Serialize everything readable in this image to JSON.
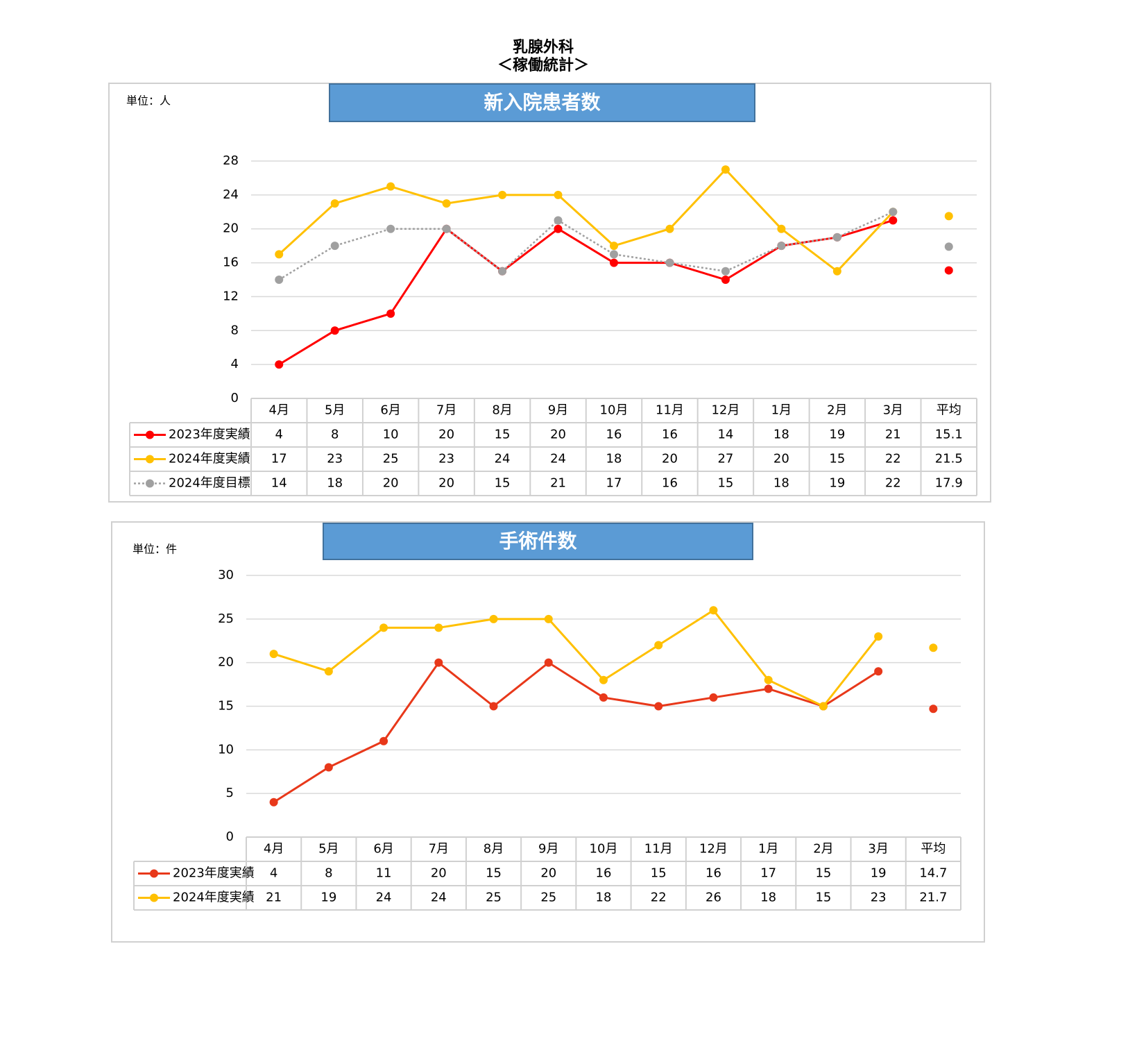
{
  "page_title": [
    "乳腺外科",
    "＜稼働統計＞"
  ],
  "chart_data": [
    {
      "type": "line",
      "title": "新入院患者数",
      "unit_label": "単位：人",
      "categories": [
        "4月",
        "5月",
        "6月",
        "7月",
        "8月",
        "9月",
        "10月",
        "11月",
        "12月",
        "1月",
        "2月",
        "3月"
      ],
      "average_label": "平均",
      "ylim": [
        0,
        28
      ],
      "yticks": [
        0,
        4,
        8,
        12,
        16,
        20,
        24,
        28
      ],
      "grid": true,
      "series": [
        {
          "name": "2023年度実績",
          "color": "#ff0000",
          "dash": "solid",
          "values": [
            4,
            8,
            10,
            20,
            15,
            20,
            16,
            16,
            14,
            18,
            19,
            21
          ],
          "average": 15.1
        },
        {
          "name": "2024年度実績",
          "color": "#ffc000",
          "dash": "solid",
          "values": [
            17,
            23,
            25,
            23,
            24,
            24,
            18,
            20,
            27,
            20,
            15,
            22
          ],
          "average": 21.5
        },
        {
          "name": "2024年度目標",
          "color": "#a0a0a0",
          "dash": "dotted",
          "values": [
            14,
            18,
            20,
            20,
            15,
            21,
            17,
            16,
            15,
            18,
            19,
            22
          ],
          "average": 17.9
        }
      ]
    },
    {
      "type": "line",
      "title": "手術件数",
      "unit_label": "単位：件",
      "categories": [
        "4月",
        "5月",
        "6月",
        "7月",
        "8月",
        "9月",
        "10月",
        "11月",
        "12月",
        "1月",
        "2月",
        "3月"
      ],
      "average_label": "平均",
      "ylim": [
        0,
        30
      ],
      "yticks": [
        0,
        5,
        10,
        15,
        20,
        25,
        30
      ],
      "grid": true,
      "series": [
        {
          "name": "2023年度実績",
          "color": "#e8381a",
          "dash": "solid",
          "values": [
            4,
            8,
            11,
            20,
            15,
            20,
            16,
            15,
            16,
            17,
            15,
            19
          ],
          "average": 14.7
        },
        {
          "name": "2024年度実績",
          "color": "#ffc000",
          "dash": "solid",
          "values": [
            21,
            19,
            24,
            24,
            25,
            25,
            18,
            22,
            26,
            18,
            15,
            23
          ],
          "average": 21.7
        }
      ]
    }
  ]
}
